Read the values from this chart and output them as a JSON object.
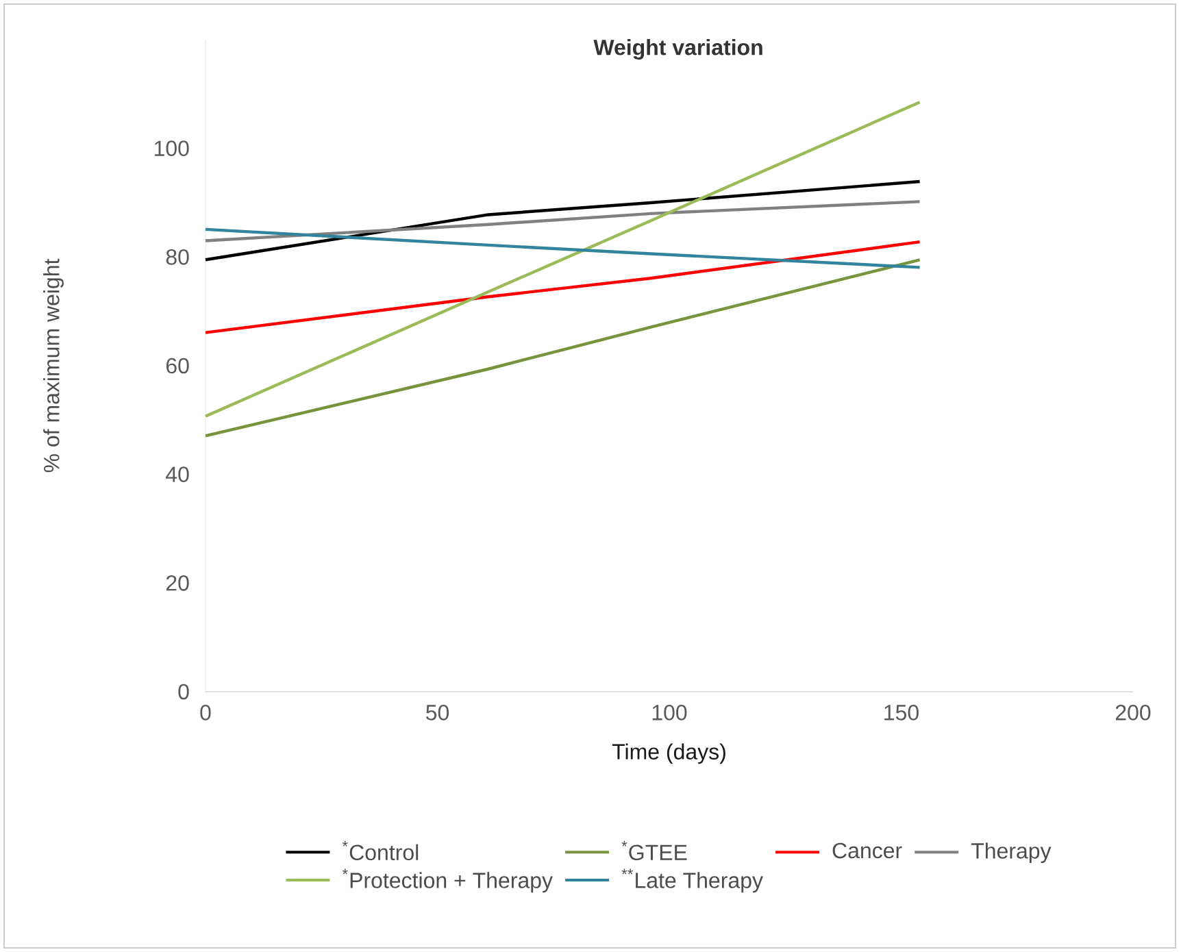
{
  "chart_data": {
    "type": "line",
    "title": "Weight variation",
    "xlabel": "Time (days)",
    "ylabel": "% of maximum weight",
    "xlim": [
      0,
      200
    ],
    "xticks": [
      0,
      50,
      100,
      150,
      200
    ],
    "ylim": [
      0,
      120
    ],
    "yticks": [
      0,
      20,
      40,
      60,
      80,
      100
    ],
    "legend": "bottom",
    "x": [
      0,
      61,
      96,
      154
    ],
    "series": [
      {
        "name": "$^{*}$Control",
        "color": "#000000",
        "values": [
          79.5,
          87.8,
          90.0,
          93.9
        ]
      },
      {
        "name": "$^{*}$GTEE",
        "color": "#77933c",
        "values": [
          47.1,
          59.4,
          67.1,
          79.5
        ]
      },
      {
        "name": "Cancer",
        "color": "#ff0000",
        "values": [
          66.1,
          72.7,
          76.1,
          82.8
        ]
      },
      {
        "name": "Therapy",
        "color": "#808080",
        "values": [
          83.0,
          86.0,
          88.0,
          90.2
        ]
      },
      {
        "name": "$^{*}$Protection + Therapy",
        "color": "#9bbb59",
        "values": [
          50.7,
          73.6,
          86.7,
          108.5
        ]
      },
      {
        "name": "$^{**}$Late Therapy",
        "color": "#31849b",
        "values": [
          85.1,
          82.2,
          80.6,
          78.1
        ]
      }
    ]
  }
}
